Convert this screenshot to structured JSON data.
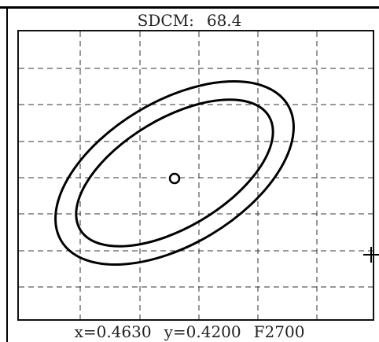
{
  "title": {
    "label": "SDCM:",
    "value": "68.4"
  },
  "readout": {
    "x": "x=0.4630",
    "y": "y=0.4200",
    "cct": "F2700"
  },
  "icons": {
    "target": "target-point-icon",
    "cursor": "crosshair-cursor-icon"
  }
}
